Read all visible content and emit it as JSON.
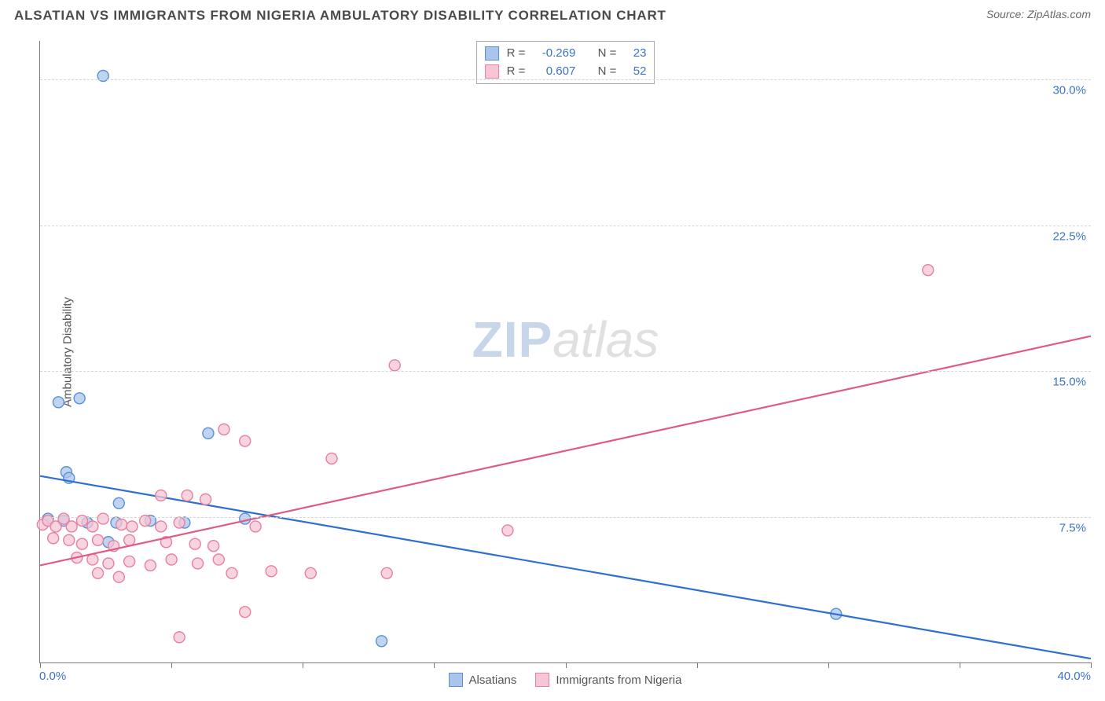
{
  "title": "ALSATIAN VS IMMIGRANTS FROM NIGERIA AMBULATORY DISABILITY CORRELATION CHART",
  "source": "Source: ZipAtlas.com",
  "ylabel": "Ambulatory Disability",
  "watermark": {
    "part1": "ZIP",
    "part2": "atlas"
  },
  "chart": {
    "type": "scatter",
    "xlim": [
      0,
      40
    ],
    "ylim": [
      0,
      32
    ],
    "x_ticks": [
      0,
      5,
      10,
      15,
      20,
      25,
      30,
      35,
      40
    ],
    "x_tick_labels_visible": {
      "0": "0.0%",
      "40": "40.0%"
    },
    "y_gridlines": [
      7.5,
      15.0,
      22.5,
      30.0
    ],
    "y_tick_labels": [
      "7.5%",
      "15.0%",
      "22.5%",
      "30.0%"
    ],
    "grid_color": "#d6d6d6",
    "axis_color": "#7a7a7a",
    "background_color": "#ffffff",
    "tick_label_color": "#3a72c8",
    "series": [
      {
        "name": "Alsatians",
        "color_fill": "#a9c5eb",
        "color_stroke": "#5b8fd6",
        "line_color": "#2f6fd0",
        "marker_radius": 7,
        "correlation_r": "-0.269",
        "correlation_n": "23",
        "trend": {
          "x1": 0,
          "y1": 9.6,
          "x2": 40,
          "y2": 0.2
        },
        "points": [
          [
            2.4,
            30.2
          ],
          [
            0.7,
            13.4
          ],
          [
            1.5,
            13.6
          ],
          [
            6.4,
            11.8
          ],
          [
            1.0,
            9.8
          ],
          [
            1.1,
            9.5
          ],
          [
            3.0,
            8.2
          ],
          [
            0.3,
            7.4
          ],
          [
            0.9,
            7.3
          ],
          [
            1.8,
            7.2
          ],
          [
            2.9,
            7.2
          ],
          [
            4.2,
            7.3
          ],
          [
            5.5,
            7.2
          ],
          [
            7.8,
            7.4
          ],
          [
            2.6,
            6.2
          ],
          [
            30.3,
            2.5
          ],
          [
            13.0,
            1.1
          ]
        ]
      },
      {
        "name": "Immigrants from Nigeria",
        "color_fill": "#f6c6d4",
        "color_stroke": "#e87fa0",
        "line_color": "#e05a86",
        "marker_radius": 7,
        "correlation_r": "0.607",
        "correlation_n": "52",
        "trend": {
          "x1": 0,
          "y1": 5.0,
          "x2": 40,
          "y2": 16.8
        },
        "points": [
          [
            33.8,
            20.2
          ],
          [
            13.5,
            15.3
          ],
          [
            7.0,
            12.0
          ],
          [
            7.8,
            11.4
          ],
          [
            11.1,
            10.5
          ],
          [
            4.6,
            8.6
          ],
          [
            5.6,
            8.6
          ],
          [
            6.3,
            8.4
          ],
          [
            0.1,
            7.1
          ],
          [
            0.3,
            7.3
          ],
          [
            0.6,
            7.0
          ],
          [
            0.9,
            7.4
          ],
          [
            1.2,
            7.0
          ],
          [
            1.6,
            7.3
          ],
          [
            2.0,
            7.0
          ],
          [
            2.4,
            7.4
          ],
          [
            3.1,
            7.1
          ],
          [
            3.5,
            7.0
          ],
          [
            4.0,
            7.3
          ],
          [
            4.6,
            7.0
          ],
          [
            5.3,
            7.2
          ],
          [
            8.2,
            7.0
          ],
          [
            17.8,
            6.8
          ],
          [
            0.5,
            6.4
          ],
          [
            1.1,
            6.3
          ],
          [
            1.6,
            6.1
          ],
          [
            2.2,
            6.3
          ],
          [
            2.8,
            6.0
          ],
          [
            3.4,
            6.3
          ],
          [
            4.8,
            6.2
          ],
          [
            5.9,
            6.1
          ],
          [
            6.6,
            6.0
          ],
          [
            1.4,
            5.4
          ],
          [
            2.0,
            5.3
          ],
          [
            2.6,
            5.1
          ],
          [
            3.4,
            5.2
          ],
          [
            4.2,
            5.0
          ],
          [
            5.0,
            5.3
          ],
          [
            6.0,
            5.1
          ],
          [
            6.8,
            5.3
          ],
          [
            2.2,
            4.6
          ],
          [
            3.0,
            4.4
          ],
          [
            7.3,
            4.6
          ],
          [
            8.8,
            4.7
          ],
          [
            10.3,
            4.6
          ],
          [
            13.2,
            4.6
          ],
          [
            7.8,
            2.6
          ],
          [
            5.3,
            1.3
          ]
        ]
      }
    ]
  },
  "legend_top_labels": {
    "r": "R =",
    "n": "N ="
  },
  "legend_bottom": [
    {
      "label": "Alsatians",
      "fill": "#a9c5eb",
      "stroke": "#5b8fd6"
    },
    {
      "label": "Immigrants from Nigeria",
      "fill": "#f6c6d4",
      "stroke": "#e87fa0"
    }
  ]
}
